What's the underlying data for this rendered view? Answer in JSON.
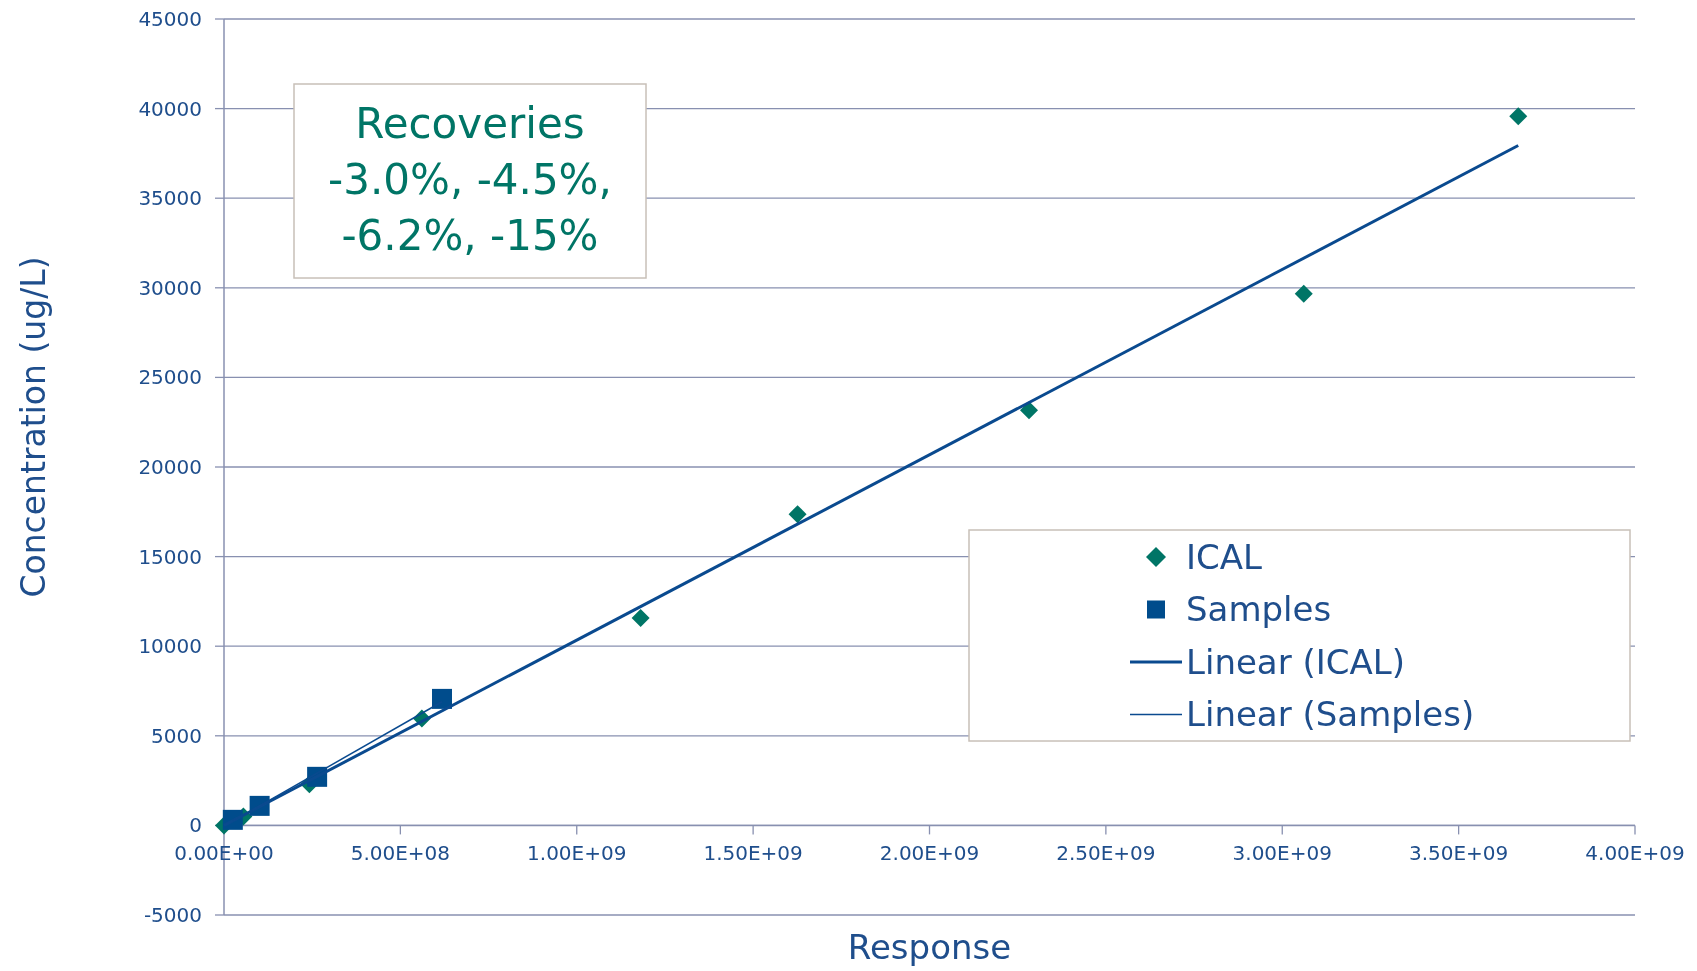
{
  "chart_data": {
    "type": "scatter",
    "xlabel": "Response",
    "ylabel": "Concentration (ug/L)",
    "xlim": [
      0,
      4000000000
    ],
    "ylim": [
      -5000,
      45000
    ],
    "xticks": [
      {
        "value": 0,
        "label": "0.00E+00"
      },
      {
        "value": 500000000,
        "label": "5.00E+08"
      },
      {
        "value": 1000000000,
        "label": "1.00E+09"
      },
      {
        "value": 1500000000,
        "label": "1.50E+09"
      },
      {
        "value": 2000000000,
        "label": "2.00E+09"
      },
      {
        "value": 2500000000,
        "label": "2.50E+09"
      },
      {
        "value": 3000000000,
        "label": "3.00E+09"
      },
      {
        "value": 3500000000,
        "label": "3.50E+09"
      },
      {
        "value": 4000000000,
        "label": "4.00E+09"
      }
    ],
    "yticks": [
      -5000,
      0,
      5000,
      10000,
      15000,
      20000,
      25000,
      30000,
      35000,
      40000,
      45000
    ],
    "grid": "y",
    "legend": "bottom right",
    "annotations": [
      "Recoveries\n-3.0%, -4.5%,\n-6.2%, -15%"
    ],
    "series": [
      {
        "name": "ICAL",
        "marker": "diamond",
        "color": "#007566",
        "x": [
          0,
          55000000,
          242000000,
          561000000,
          1181000000,
          1626000000,
          2282000000,
          3061000000,
          3669000000
        ],
        "values": [
          0,
          500,
          2290,
          5970,
          11580,
          17370,
          23160,
          29670,
          39570
        ]
      },
      {
        "name": "Samples",
        "marker": "square",
        "color": "#004c8c",
        "x": [
          25000000,
          101000000,
          264000000,
          618000000
        ],
        "values": [
          310,
          1090,
          2710,
          7060
        ]
      },
      {
        "name": "Linear (ICAL)",
        "type": "line",
        "marker": "none",
        "line_style": "solid",
        "color": "#0a4a8f",
        "x": [
          0,
          3669000000
        ],
        "values": [
          0,
          37940
        ]
      },
      {
        "name": "Linear (Samples)",
        "type": "line",
        "marker": "none",
        "line_style": "solid",
        "color": "#0a4a8f",
        "x": [
          25000000,
          618000000
        ],
        "values": [
          230,
          6900
        ]
      }
    ]
  }
}
